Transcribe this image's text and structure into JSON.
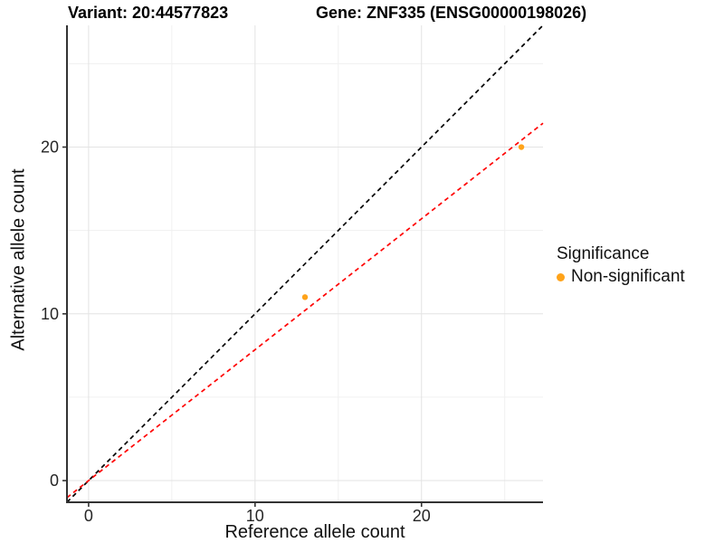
{
  "header": {
    "variant_title": "Variant: 20:44577823",
    "gene_title": "Gene: ZNF335 (ENSG00000198026)"
  },
  "axes": {
    "xlabel": "Reference allele count",
    "ylabel": "Alternative allele count"
  },
  "legend": {
    "title": "Significance",
    "items": [
      {
        "label": "Non-significant",
        "color": "#FFA319"
      }
    ]
  },
  "colors": {
    "point": "#FFA319",
    "identity_line": "#000000",
    "fit_line": "#FF0000",
    "grid_major": "#E3E3E3",
    "grid_minor": "#F0F0F0",
    "axis_line": "#333333",
    "tick_label": "#262626"
  },
  "chart_data": {
    "type": "scatter",
    "title": "Variant: 20:44577823  Gene: ZNF335 (ENSG00000198026)",
    "xlabel": "Reference allele count",
    "ylabel": "Alternative allele count",
    "xlim": [
      -1.3,
      27.3
    ],
    "ylim": [
      -1.3,
      27.3
    ],
    "x_major_ticks": [
      0,
      10,
      20
    ],
    "x_minor_ticks": [
      5,
      15,
      25
    ],
    "y_major_ticks": [
      0,
      10,
      20
    ],
    "y_minor_ticks": [
      5,
      15,
      25
    ],
    "grid": true,
    "legend_position": "right",
    "series": [
      {
        "name": "Non-significant",
        "color": "#FFA319",
        "points": [
          {
            "x": 13,
            "y": 11
          },
          {
            "x": 26,
            "y": 20
          }
        ]
      }
    ],
    "lines": [
      {
        "name": "identity",
        "slope": 1.0,
        "intercept": 0,
        "color": "#000000",
        "style": "dashed"
      },
      {
        "name": "regression-fit",
        "slope": 0.785,
        "intercept": 0,
        "color": "#FF0000",
        "style": "dashed"
      }
    ]
  }
}
